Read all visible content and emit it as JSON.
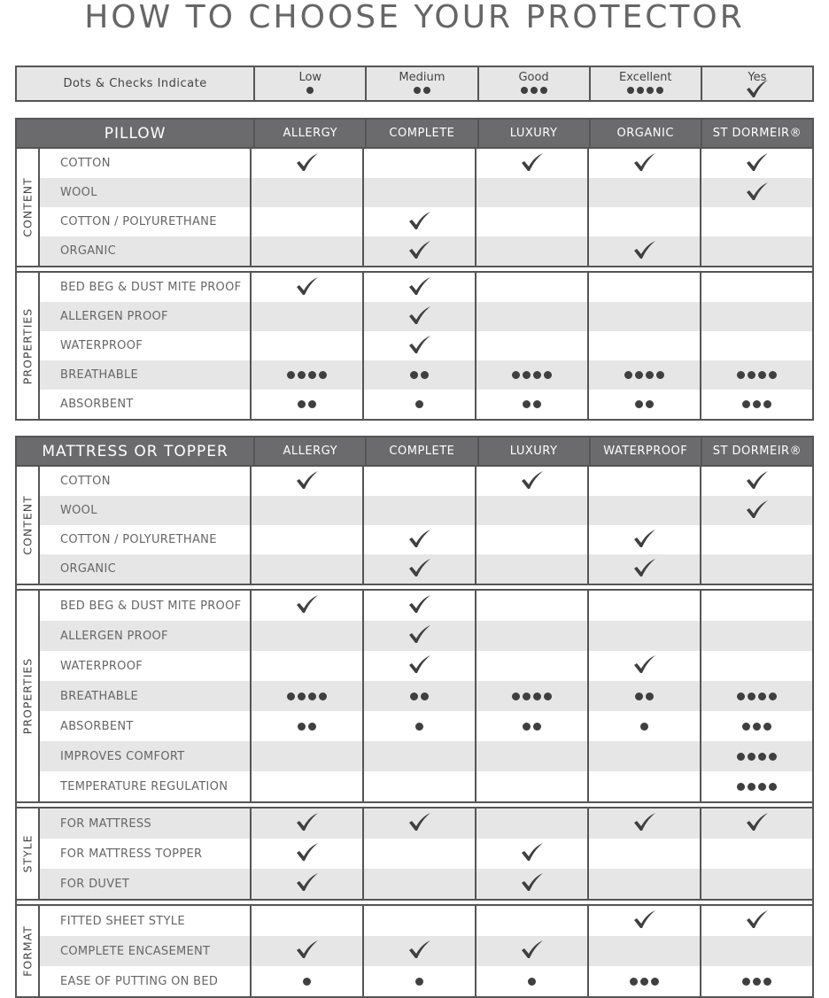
{
  "title": "HOW TO CHOOSE YOUR PROTECTOR",
  "colors": {
    "header_bg": "#6b6b6e",
    "shaded_row": "#e6e6e6",
    "border": "#555555",
    "mark": "#3f3f3f"
  },
  "legend": {
    "label": "Dots & Checks Indicate",
    "items": [
      {
        "label": "Low",
        "mark": 1
      },
      {
        "label": "Medium",
        "mark": 2
      },
      {
        "label": "Good",
        "mark": 3
      },
      {
        "label": "Excellent",
        "mark": 4
      },
      {
        "label": "Yes",
        "mark": "check"
      }
    ]
  },
  "sections": [
    {
      "name": "PILLOW",
      "columns": [
        "ALLERGY",
        "COMPLETE",
        "LUXURY",
        "ORGANIC",
        "ST DORMEIR®"
      ],
      "groups": [
        {
          "name": "CONTENT",
          "rows": [
            {
              "label": "COTTON",
              "shaded": false,
              "values": [
                "check",
                "",
                "check",
                "check",
                "check"
              ]
            },
            {
              "label": "WOOL",
              "shaded": true,
              "values": [
                "",
                "",
                "",
                "",
                "check"
              ]
            },
            {
              "label": "COTTON / POLYURETHANE",
              "shaded": false,
              "values": [
                "",
                "check",
                "",
                "",
                ""
              ]
            },
            {
              "label": "ORGANIC",
              "shaded": true,
              "values": [
                "",
                "check",
                "",
                "check",
                ""
              ]
            }
          ]
        },
        {
          "name": "PROPERTIES",
          "rows": [
            {
              "label": "BED BEG & DUST MITE PROOF",
              "shaded": false,
              "values": [
                "check",
                "check",
                "",
                "",
                ""
              ]
            },
            {
              "label": "ALLERGEN PROOF",
              "shaded": true,
              "values": [
                "",
                "check",
                "",
                "",
                ""
              ]
            },
            {
              "label": "WATERPROOF",
              "shaded": false,
              "values": [
                "",
                "check",
                "",
                "",
                ""
              ]
            },
            {
              "label": "BREATHABLE",
              "shaded": true,
              "values": [
                4,
                2,
                4,
                4,
                4
              ]
            },
            {
              "label": "ABSORBENT",
              "shaded": false,
              "values": [
                2,
                1,
                2,
                2,
                3
              ]
            }
          ]
        }
      ]
    },
    {
      "name": "MATTRESS OR TOPPER",
      "columns": [
        "ALLERGY",
        "COMPLETE",
        "LUXURY",
        "WATERPROOF",
        "ST DORMEIR®"
      ],
      "groups": [
        {
          "name": "CONTENT",
          "rows": [
            {
              "label": "COTTON",
              "shaded": false,
              "values": [
                "check",
                "",
                "check",
                "",
                "check"
              ]
            },
            {
              "label": "WOOL",
              "shaded": true,
              "values": [
                "",
                "",
                "",
                "",
                "check"
              ]
            },
            {
              "label": "COTTON / POLYURETHANE",
              "shaded": false,
              "values": [
                "",
                "check",
                "",
                "check",
                ""
              ]
            },
            {
              "label": "ORGANIC",
              "shaded": true,
              "values": [
                "",
                "check",
                "",
                "check",
                ""
              ]
            }
          ]
        },
        {
          "name": "PROPERTIES",
          "rows": [
            {
              "label": "BED BEG & DUST MITE PROOF",
              "shaded": false,
              "values": [
                "check",
                "check",
                "",
                "",
                ""
              ]
            },
            {
              "label": "ALLERGEN PROOF",
              "shaded": true,
              "values": [
                "",
                "check",
                "",
                "",
                ""
              ]
            },
            {
              "label": "WATERPROOF",
              "shaded": false,
              "values": [
                "",
                "check",
                "",
                "check",
                ""
              ]
            },
            {
              "label": "BREATHABLE",
              "shaded": true,
              "values": [
                4,
                2,
                4,
                2,
                4
              ]
            },
            {
              "label": "ABSORBENT",
              "shaded": false,
              "values": [
                2,
                1,
                2,
                1,
                3
              ]
            },
            {
              "label": "IMPROVES COMFORT",
              "shaded": true,
              "values": [
                "",
                "",
                "",
                "",
                4
              ]
            },
            {
              "label": "TEMPERATURE REGULATION",
              "shaded": false,
              "values": [
                "",
                "",
                "",
                "",
                4
              ]
            }
          ]
        },
        {
          "name": "STYLE",
          "rows": [
            {
              "label": "FOR MATTRESS",
              "shaded": true,
              "values": [
                "check",
                "check",
                "",
                "check",
                "check"
              ]
            },
            {
              "label": "FOR MATTRESS TOPPER",
              "shaded": false,
              "values": [
                "check",
                "",
                "check",
                "",
                ""
              ]
            },
            {
              "label": "FOR DUVET",
              "shaded": true,
              "values": [
                "check",
                "",
                "check",
                "",
                ""
              ]
            }
          ]
        },
        {
          "name": "FORMAT",
          "rows": [
            {
              "label": "FITTED SHEET STYLE",
              "shaded": false,
              "values": [
                "",
                "",
                "",
                "check",
                "check"
              ]
            },
            {
              "label": "COMPLETE ENCASEMENT",
              "shaded": true,
              "values": [
                "check",
                "check",
                "check",
                "",
                ""
              ]
            },
            {
              "label": "EASE OF PUTTING ON BED",
              "shaded": false,
              "values": [
                1,
                1,
                1,
                3,
                3
              ]
            }
          ]
        }
      ]
    }
  ]
}
